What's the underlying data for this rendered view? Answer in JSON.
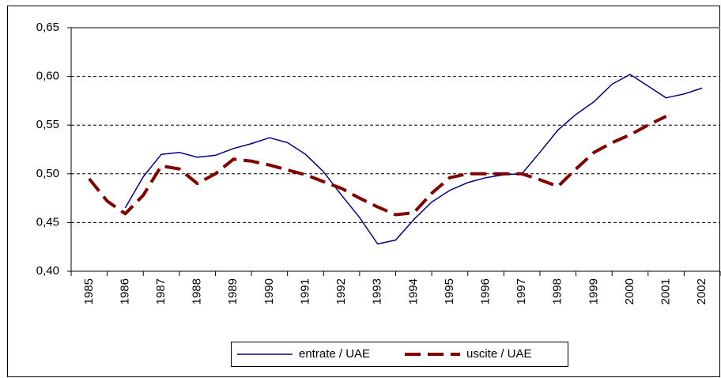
{
  "chart_data": {
    "type": "line",
    "categories": [
      "1985",
      null,
      "1986",
      null,
      "1987",
      null,
      "1988",
      null,
      "1989",
      null,
      "1990",
      null,
      "1991",
      null,
      "1992",
      null,
      "1993",
      null,
      "1994",
      null,
      "1995",
      null,
      "1996",
      null,
      "1997",
      null,
      "1998",
      null,
      "1999",
      null,
      "2000",
      null,
      "2001",
      null,
      "2002"
    ],
    "series": [
      {
        "name": "entrate / UAE",
        "color": "#000080",
        "dashed": false,
        "values": [
          null,
          null,
          0.465,
          0.497,
          0.52,
          0.522,
          0.517,
          0.519,
          0.526,
          0.531,
          0.537,
          0.532,
          0.52,
          0.502,
          0.478,
          0.455,
          0.428,
          0.432,
          0.453,
          0.471,
          0.483,
          0.491,
          0.496,
          0.499,
          0.5,
          0.522,
          0.545,
          0.561,
          0.574,
          0.592,
          0.602,
          0.59,
          0.578,
          0.582,
          0.588
        ]
      },
      {
        "name": "uscite / UAE",
        "color": "#800000",
        "dashed": true,
        "values": [
          0.495,
          0.472,
          0.459,
          0.478,
          0.508,
          0.505,
          0.49,
          0.5,
          0.515,
          0.513,
          0.509,
          0.504,
          0.499,
          0.492,
          0.485,
          0.475,
          0.466,
          0.458,
          0.46,
          0.48,
          0.496,
          0.5,
          0.5,
          0.5,
          0.5,
          0.494,
          0.487,
          0.505,
          0.522,
          0.532,
          0.54,
          0.55,
          0.559,
          null,
          null
        ]
      }
    ],
    "ylim": [
      0.4,
      0.65
    ],
    "yticks": [
      {
        "value": 0.4,
        "label": "0,40"
      },
      {
        "value": 0.45,
        "label": "0,45"
      },
      {
        "value": 0.5,
        "label": "0,50"
      },
      {
        "value": 0.55,
        "label": "0,55"
      },
      {
        "value": 0.6,
        "label": "0,60"
      },
      {
        "value": 0.65,
        "label": "0,65"
      }
    ],
    "grid": true,
    "legend": "bottom"
  }
}
